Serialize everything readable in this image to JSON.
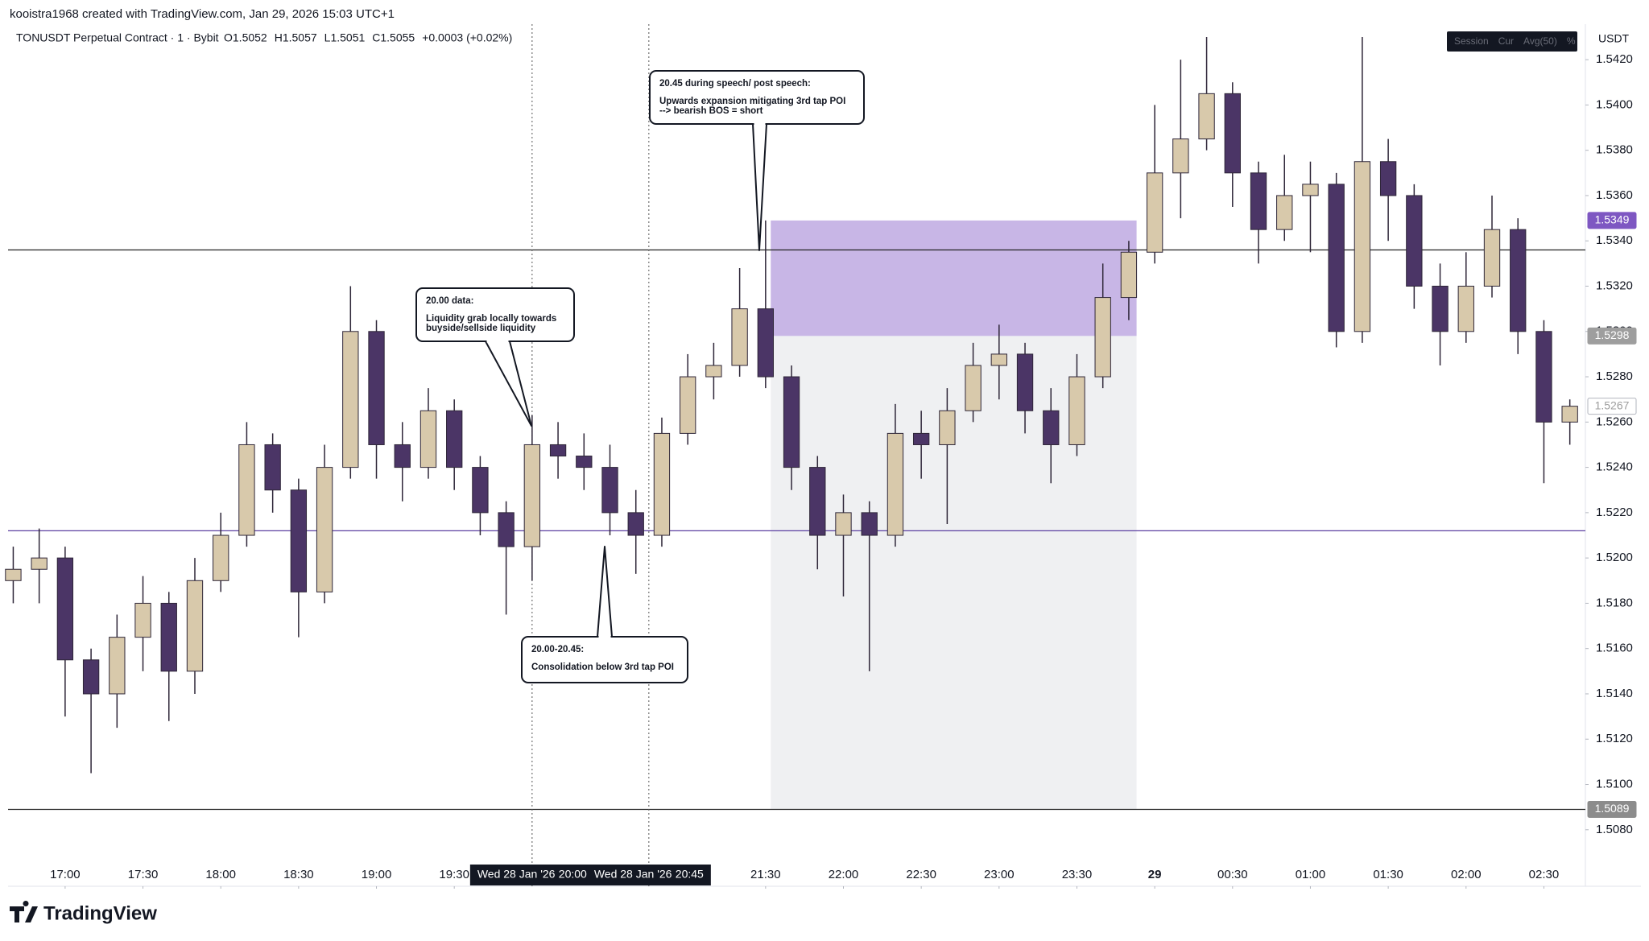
{
  "chart_data": {
    "type": "candlestick",
    "credit": "kooistra1968 created with TradingView.com, Jan 29, 2026 15:03 UTC+1",
    "symbol": "TONUSDT Perpetual Contract · 1 · Bybit",
    "ohlc_readout": [
      "O1.5052",
      "H1.5057",
      "L1.5051",
      "C1.5055",
      "+0.0003 (+0.02%)"
    ],
    "currency": "USDT",
    "controls": [
      "Session",
      "Cur",
      "Avg(50)",
      "%"
    ],
    "brand": "TradingView",
    "up_color": "#d8c9ab",
    "down_color": "#4b3566",
    "wick_color": "#2e2638",
    "x": [
      "16:40",
      "16:50",
      "17:00",
      "17:10",
      "17:20",
      "17:30",
      "17:40",
      "17:50",
      "18:00",
      "18:10",
      "18:20",
      "18:30",
      "18:40",
      "18:50",
      "19:00",
      "19:10",
      "19:20",
      "19:30",
      "19:40",
      "19:50",
      "20:00",
      "20:10",
      "20:20",
      "20:30",
      "20:40",
      "20:50",
      "21:00",
      "21:10",
      "21:20",
      "21:30",
      "21:40",
      "21:50",
      "22:00",
      "22:10",
      "22:20",
      "22:30",
      "22:40",
      "22:50",
      "23:00",
      "23:10",
      "23:20",
      "23:30",
      "23:40",
      "23:50",
      "00:00",
      "00:10",
      "00:20",
      "00:30",
      "00:40",
      "00:50",
      "01:00",
      "01:10",
      "01:20",
      "01:30",
      "01:40",
      "01:50",
      "02:00",
      "02:10",
      "02:20",
      "02:30",
      "02:40"
    ],
    "open": [
      1.519,
      1.5195,
      1.52,
      1.5155,
      1.514,
      1.5165,
      1.518,
      1.515,
      1.519,
      1.521,
      1.525,
      1.523,
      1.5185,
      1.524,
      1.53,
      1.525,
      1.524,
      1.5265,
      1.524,
      1.522,
      1.5205,
      1.525,
      1.5245,
      1.524,
      1.522,
      1.521,
      1.5255,
      1.528,
      1.5285,
      1.531,
      1.528,
      1.524,
      1.521,
      1.522,
      1.521,
      1.5255,
      1.525,
      1.5265,
      1.5285,
      1.529,
      1.5265,
      1.525,
      1.528,
      1.5315,
      1.5335,
      1.537,
      1.5385,
      1.5405,
      1.537,
      1.5345,
      1.536,
      1.5365,
      1.53,
      1.5375,
      1.536,
      1.532,
      1.53,
      1.532,
      1.5345,
      1.53,
      1.526
    ],
    "high": [
      1.5205,
      1.5213,
      1.5205,
      1.516,
      1.5175,
      1.5192,
      1.5185,
      1.52,
      1.522,
      1.526,
      1.5255,
      1.5235,
      1.525,
      1.532,
      1.5305,
      1.526,
      1.5275,
      1.527,
      1.5245,
      1.5225,
      1.5263,
      1.526,
      1.5255,
      1.525,
      1.523,
      1.5262,
      1.529,
      1.5295,
      1.5328,
      1.5349,
      1.5285,
      1.5245,
      1.5228,
      1.5225,
      1.5268,
      1.5265,
      1.5275,
      1.5295,
      1.5303,
      1.5295,
      1.5275,
      1.529,
      1.533,
      1.534,
      1.54,
      1.542,
      1.543,
      1.541,
      1.5375,
      1.5378,
      1.5375,
      1.537,
      1.543,
      1.5385,
      1.5365,
      1.533,
      1.5335,
      1.536,
      1.535,
      1.5305,
      1.527
    ],
    "low": [
      1.518,
      1.518,
      1.513,
      1.5105,
      1.5125,
      1.515,
      1.5128,
      1.514,
      1.5185,
      1.5205,
      1.522,
      1.5165,
      1.518,
      1.5235,
      1.5235,
      1.5225,
      1.5235,
      1.523,
      1.521,
      1.5175,
      1.519,
      1.5235,
      1.523,
      1.521,
      1.5193,
      1.5205,
      1.525,
      1.527,
      1.528,
      1.5275,
      1.523,
      1.5195,
      1.5183,
      1.515,
      1.5205,
      1.5235,
      1.5215,
      1.526,
      1.527,
      1.5255,
      1.5233,
      1.5245,
      1.5275,
      1.5305,
      1.533,
      1.535,
      1.538,
      1.5355,
      1.533,
      1.534,
      1.5335,
      1.5293,
      1.5295,
      1.534,
      1.531,
      1.5285,
      1.5295,
      1.5315,
      1.529,
      1.5233,
      1.525
    ],
    "close": [
      1.5195,
      1.52,
      1.5155,
      1.514,
      1.5165,
      1.518,
      1.515,
      1.519,
      1.521,
      1.525,
      1.523,
      1.5185,
      1.524,
      1.53,
      1.525,
      1.524,
      1.5265,
      1.524,
      1.522,
      1.5205,
      1.525,
      1.5245,
      1.524,
      1.522,
      1.521,
      1.5255,
      1.528,
      1.5285,
      1.531,
      1.528,
      1.524,
      1.521,
      1.522,
      1.521,
      1.5255,
      1.525,
      1.5265,
      1.5285,
      1.529,
      1.5265,
      1.525,
      1.528,
      1.5315,
      1.5335,
      1.537,
      1.5385,
      1.5405,
      1.537,
      1.5345,
      1.536,
      1.5365,
      1.53,
      1.5375,
      1.536,
      1.532,
      1.53,
      1.532,
      1.5345,
      1.53,
      1.526,
      1.5267
    ],
    "xlim": [
      "16:38",
      "02:46"
    ],
    "ylim": [
      1.5065,
      1.543
    ],
    "xticks": [
      "17:00",
      "17:30",
      "18:00",
      "18:30",
      "19:00",
      "19:30",
      "21:30",
      "22:00",
      "22:30",
      "23:00",
      "23:30",
      {
        "value": "00:00",
        "label": "29"
      },
      "00:30",
      "01:00",
      "01:30",
      "02:00",
      "02:30"
    ],
    "yticks": [
      {
        "value": 1.508,
        "label": "1.5080"
      },
      {
        "value": 1.51,
        "label": "1.5100"
      },
      {
        "value": 1.512,
        "label": "1.5120"
      },
      {
        "value": 1.514,
        "label": "1.5140"
      },
      {
        "value": 1.516,
        "label": "1.5160"
      },
      {
        "value": 1.518,
        "label": "1.5180"
      },
      {
        "value": 1.52,
        "label": "1.5200"
      },
      {
        "value": 1.522,
        "label": "1.5220"
      },
      {
        "value": 1.524,
        "label": "1.5240"
      },
      {
        "value": 1.526,
        "label": "1.5260"
      },
      {
        "value": 1.528,
        "label": "1.5280"
      },
      {
        "value": 1.53,
        "label": "1.5300"
      },
      {
        "value": 1.532,
        "label": "1.5320"
      },
      {
        "value": 1.534,
        "label": "1.5340"
      },
      {
        "value": 1.536,
        "label": "1.5360"
      },
      {
        "value": 1.538,
        "label": "1.5380"
      },
      {
        "value": 1.54,
        "label": "1.5400"
      },
      {
        "value": 1.542,
        "label": "1.5420"
      }
    ],
    "hlines": [
      {
        "value": 1.5336,
        "color": "#222222"
      },
      {
        "value": 1.5212,
        "color": "#5b3fa0"
      },
      {
        "value": 1.5089,
        "color": "#222222"
      }
    ],
    "zones": [
      {
        "x0": "21:32",
        "x1": "23:53",
        "y0": 1.5298,
        "y1": 1.5349,
        "color": "#c8b6e6"
      },
      {
        "x0": "21:32",
        "x1": "23:53",
        "y0": 1.5089,
        "y1": 1.5298,
        "color": "#eff0f2"
      }
    ],
    "price_labels": [
      {
        "value": 1.5349,
        "bg": "#7e57c2",
        "fg": "#ffffff"
      },
      {
        "value": 1.5298,
        "bg": "#9e9e9e",
        "fg": "#ffffff"
      },
      {
        "value": 1.5267,
        "bg": "#ffffff",
        "fg": "#9e9e9e"
      },
      {
        "value": 1.5089,
        "bg": "#8c8c8c",
        "fg": "#ffffff"
      }
    ],
    "vlines": [
      {
        "x": "20:00",
        "date": "Wed 28 Jan '26",
        "time": "20:00"
      },
      {
        "x": "20:45",
        "date": "Wed 28 Jan '26",
        "time": "20:45"
      }
    ],
    "annotations": [
      {
        "lines": [
          "20.45 during speech/ post speech:",
          "Upwards expansion mitigating 3rd tap POI",
          "--> bearish BOS = short"
        ]
      },
      {
        "lines": [
          "20.00 data:",
          "Liquidity grab locally towards",
          "buyside/sellside liquidity"
        ]
      },
      {
        "lines": [
          "20.00-20.45:",
          "Consolidation below 3rd tap POI"
        ]
      }
    ]
  }
}
